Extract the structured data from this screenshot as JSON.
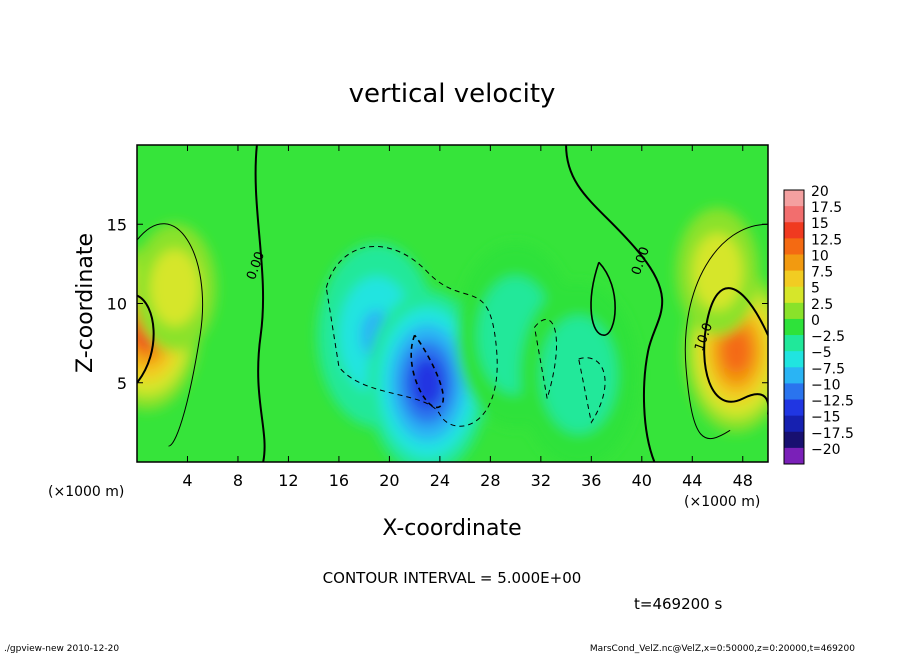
{
  "chart_data": {
    "type": "heatmap",
    "title": "vertical velocity",
    "xlabel": "X-coordinate",
    "ylabel": "Z-coordinate",
    "x_units": "(×1000 m)",
    "xlim": [
      0,
      50
    ],
    "ylim": [
      0,
      20
    ],
    "x_ticks": [
      4,
      8,
      12,
      16,
      20,
      24,
      28,
      32,
      36,
      40,
      44,
      48
    ],
    "y_ticks": [
      5,
      10,
      15
    ],
    "contour_labels": [
      {
        "text": "0.00",
        "x": 9.7,
        "y": 12.3
      },
      {
        "text": "0.00",
        "x": 40.2,
        "y": 12.6
      },
      {
        "text": "10.0",
        "x": 45.2,
        "y": 7.8
      }
    ],
    "contour_interval_text": "CONTOUR INTERVAL = 5.000E+00",
    "time_text": "t=469200 s",
    "colorbar": {
      "labels": [
        "20",
        "17.5",
        "15",
        "12.5",
        "10",
        "7.5",
        "5",
        "2.5",
        "0",
        "−2.5",
        "−5",
        "−7.5",
        "−10",
        "−12.5",
        "−15",
        "−17.5",
        "−20"
      ],
      "colors": [
        "#f4a0a0",
        "#f26e6e",
        "#f03a20",
        "#f46a12",
        "#f29a10",
        "#f2cc22",
        "#d6e62a",
        "#8ae22a",
        "#2ee23a",
        "#20e89a",
        "#20e4e0",
        "#2ab4f4",
        "#2a74ee",
        "#2036e2",
        "#1620b0",
        "#181070",
        "#7a20b8"
      ]
    },
    "field": {
      "background_value": 0,
      "features": [
        {
          "kind": "updraft",
          "x": 0.8,
          "z": 8.4,
          "peak": 14
        },
        {
          "kind": "updraft",
          "x": 47.5,
          "z": 7.0,
          "peak": 12.5
        },
        {
          "kind": "weak-updraft",
          "x": 3,
          "z": 11,
          "peak": 5
        },
        {
          "kind": "weak-updraft",
          "x": 46,
          "z": 12,
          "peak": 5
        },
        {
          "kind": "downdraft",
          "x": 19,
          "z": 8,
          "peak": -7
        },
        {
          "kind": "downdraft",
          "x": 23,
          "z": 5,
          "peak": -12
        },
        {
          "kind": "downdraft",
          "x": 30,
          "z": 8,
          "peak": -3
        },
        {
          "kind": "downdraft",
          "x": 35,
          "z": 5.5,
          "peak": -3
        }
      ]
    }
  },
  "footer": {
    "left": "./gpview-new   2010-12-20",
    "right": "MarsCond_VelZ.nc@VelZ,x=0:50000,z=0:20000,t=469200"
  }
}
